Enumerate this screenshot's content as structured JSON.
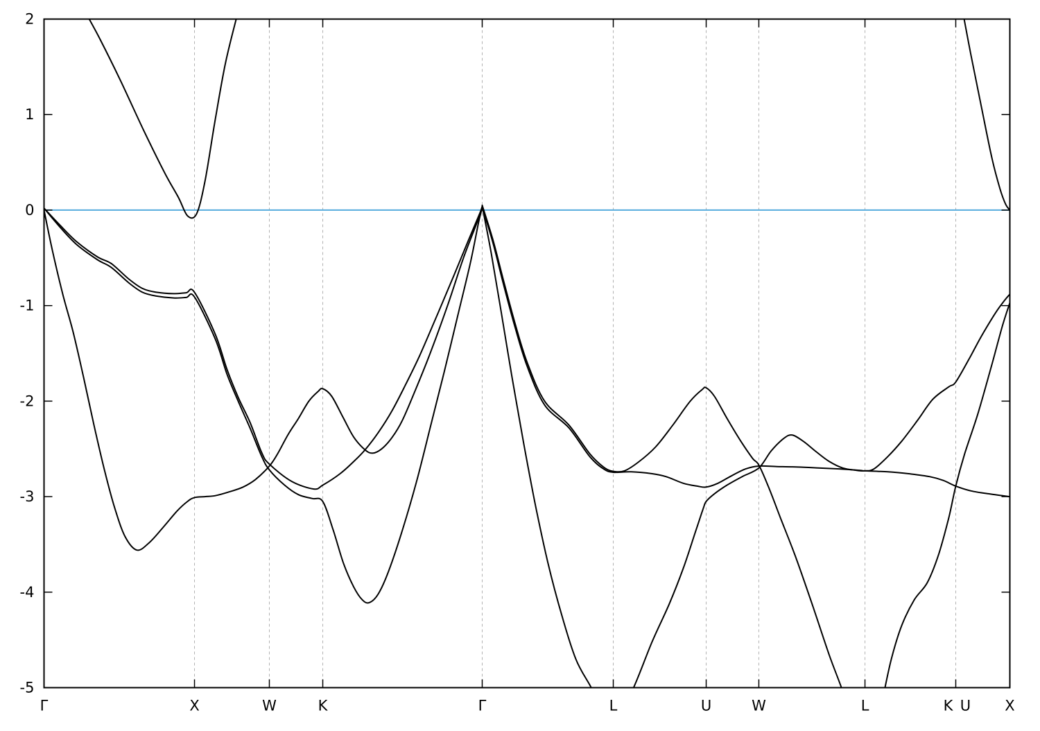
{
  "chart_data": {
    "type": "line",
    "title": "",
    "xlabel": "",
    "ylabel": "",
    "ylim": [
      -5,
      2
    ],
    "yticks": [
      -5,
      -4,
      -3,
      -2,
      -1,
      0,
      1,
      2
    ],
    "ytick_labels": [
      "-5",
      "-4",
      "-3",
      "-2",
      "-1",
      "0",
      "1",
      "2"
    ],
    "grid": {
      "vertical_only": true,
      "color": "#b0b0b0",
      "style": "dashed"
    },
    "border_color": "#000000",
    "background": "#ffffff",
    "zero_line": {
      "value": 0,
      "color": "#55acdd",
      "name": "fermi-level"
    },
    "band_color": "#000000",
    "xgridlines": [
      0.1558,
      0.2333,
      0.2886,
      0.4537,
      0.5894,
      0.6856,
      0.7401,
      0.85,
      0.944
    ],
    "xlabels": [
      {
        "text": "Γ",
        "pos": 0.0
      },
      {
        "text": "X",
        "pos": 0.1558
      },
      {
        "text": "W",
        "pos": 0.2333
      },
      {
        "text": "K",
        "pos": 0.2886
      },
      {
        "text": "Γ",
        "pos": 0.4537
      },
      {
        "text": "L",
        "pos": 0.5894
      },
      {
        "text": "U",
        "pos": 0.6856
      },
      {
        "text": "W",
        "pos": 0.7401
      },
      {
        "text": "L",
        "pos": 0.85
      },
      {
        "text": "K",
        "pos": 0.9361
      },
      {
        "text": "U",
        "pos": 0.954
      },
      {
        "text": "X",
        "pos": 1.0
      }
    ],
    "series": [
      {
        "name": "conduction-band-left",
        "points": [
          [
            0.0424,
            2.08
          ],
          [
            0.0574,
            1.8
          ],
          [
            0.079,
            1.36
          ],
          [
            0.1034,
            0.83
          ],
          [
            0.1249,
            0.39
          ],
          [
            0.1393,
            0.13
          ],
          [
            0.1486,
            -0.06
          ],
          [
            0.1579,
            -0.04
          ],
          [
            0.1666,
            0.3
          ],
          [
            0.1773,
            0.95
          ],
          [
            0.1881,
            1.55
          ],
          [
            0.201,
            2.08
          ]
        ]
      },
      {
        "name": "conduction-band-right",
        "points": [
          [
            0.9512,
            2.08
          ],
          [
            0.9598,
            1.62
          ],
          [
            0.9706,
            1.08
          ],
          [
            0.9813,
            0.55
          ],
          [
            0.9899,
            0.22
          ],
          [
            0.9957,
            0.06
          ],
          [
            1.0,
            0.0
          ]
        ]
      },
      {
        "name": "valence-band-1",
        "points": [
          [
            0,
            0.02
          ],
          [
            0.0158,
            -0.15
          ],
          [
            0.0337,
            -0.33
          ],
          [
            0.0553,
            -0.49
          ],
          [
            0.0696,
            -0.56
          ],
          [
            0.0876,
            -0.72
          ],
          [
            0.1019,
            -0.82
          ],
          [
            0.1163,
            -0.86
          ],
          [
            0.1342,
            -0.875
          ],
          [
            0.1472,
            -0.865
          ],
          [
            0.1558,
            -0.86
          ],
          [
            0.1773,
            -1.3
          ],
          [
            0.1895,
            -1.67
          ],
          [
            0.201,
            -1.96
          ],
          [
            0.2132,
            -2.22
          ],
          [
            0.2254,
            -2.54
          ],
          [
            0.2333,
            -2.66
          ],
          [
            0.2563,
            -2.84
          ],
          [
            0.2793,
            -2.92
          ],
          [
            0.2886,
            -2.88
          ],
          [
            0.3065,
            -2.76
          ],
          [
            0.3209,
            -2.63
          ],
          [
            0.3324,
            -2.51
          ],
          [
            0.346,
            -2.33
          ],
          [
            0.3604,
            -2.1
          ],
          [
            0.3747,
            -1.82
          ],
          [
            0.3891,
            -1.52
          ],
          [
            0.407,
            -1.1
          ],
          [
            0.425,
            -0.67
          ],
          [
            0.4393,
            -0.32
          ],
          [
            0.4501,
            -0.06
          ],
          [
            0.4537,
            0.03
          ]
        ]
      },
      {
        "name": "valence-band-2",
        "points": [
          [
            0,
            0.02
          ],
          [
            0.0158,
            -0.17
          ],
          [
            0.0337,
            -0.36
          ],
          [
            0.0553,
            -0.52
          ],
          [
            0.0696,
            -0.6
          ],
          [
            0.0876,
            -0.76
          ],
          [
            0.1019,
            -0.86
          ],
          [
            0.1163,
            -0.9
          ],
          [
            0.1342,
            -0.92
          ],
          [
            0.1472,
            -0.915
          ],
          [
            0.1558,
            -0.91
          ],
          [
            0.1773,
            -1.35
          ],
          [
            0.1895,
            -1.72
          ],
          [
            0.201,
            -2.0
          ],
          [
            0.2132,
            -2.28
          ],
          [
            0.2254,
            -2.58
          ],
          [
            0.2333,
            -2.72
          ],
          [
            0.2491,
            -2.88
          ],
          [
            0.2635,
            -2.98
          ],
          [
            0.2778,
            -3.02
          ],
          [
            0.2886,
            -3.05
          ],
          [
            0.2994,
            -3.35
          ],
          [
            0.3101,
            -3.7
          ],
          [
            0.3209,
            -3.95
          ],
          [
            0.3295,
            -4.08
          ],
          [
            0.3367,
            -4.11
          ],
          [
            0.346,
            -4.02
          ],
          [
            0.3568,
            -3.78
          ],
          [
            0.3711,
            -3.35
          ],
          [
            0.3855,
            -2.85
          ],
          [
            0.3998,
            -2.28
          ],
          [
            0.4142,
            -1.7
          ],
          [
            0.4285,
            -1.1
          ],
          [
            0.4415,
            -0.55
          ],
          [
            0.4501,
            -0.12
          ],
          [
            0.4537,
            0.02
          ]
        ]
      },
      {
        "name": "valence-band-3",
        "points": [
          [
            0,
            0.0
          ],
          [
            0.0086,
            -0.42
          ],
          [
            0.0194,
            -0.88
          ],
          [
            0.0302,
            -1.28
          ],
          [
            0.0409,
            -1.75
          ],
          [
            0.0517,
            -2.25
          ],
          [
            0.0625,
            -2.72
          ],
          [
            0.0732,
            -3.12
          ],
          [
            0.084,
            -3.42
          ],
          [
            0.0962,
            -3.56
          ],
          [
            0.1091,
            -3.48
          ],
          [
            0.1235,
            -3.32
          ],
          [
            0.1378,
            -3.15
          ],
          [
            0.1486,
            -3.05
          ],
          [
            0.1558,
            -3.01
          ],
          [
            0.1666,
            -3.0
          ],
          [
            0.1773,
            -2.99
          ],
          [
            0.1917,
            -2.95
          ],
          [
            0.206,
            -2.9
          ],
          [
            0.219,
            -2.82
          ],
          [
            0.2333,
            -2.68
          ],
          [
            0.2419,
            -2.55
          ],
          [
            0.2527,
            -2.35
          ],
          [
            0.2635,
            -2.18
          ],
          [
            0.2742,
            -2.0
          ],
          [
            0.2836,
            -1.9
          ],
          [
            0.2886,
            -1.87
          ],
          [
            0.2979,
            -1.95
          ],
          [
            0.3101,
            -2.18
          ],
          [
            0.3209,
            -2.38
          ],
          [
            0.3324,
            -2.51
          ],
          [
            0.3403,
            -2.545
          ],
          [
            0.3496,
            -2.5
          ],
          [
            0.3604,
            -2.38
          ],
          [
            0.3711,
            -2.2
          ],
          [
            0.3855,
            -1.86
          ],
          [
            0.3998,
            -1.5
          ],
          [
            0.4178,
            -1.0
          ],
          [
            0.4343,
            -0.5
          ],
          [
            0.4487,
            -0.12
          ],
          [
            0.4537,
            0.04
          ]
        ]
      },
      {
        "name": "valence-band-4",
        "points": [
          [
            0.4537,
            0.05
          ],
          [
            0.4645,
            -0.3
          ],
          [
            0.4753,
            -0.72
          ],
          [
            0.4875,
            -1.18
          ],
          [
            0.5004,
            -1.6
          ],
          [
            0.5183,
            -2.0
          ],
          [
            0.5434,
            -2.25
          ],
          [
            0.565,
            -2.55
          ],
          [
            0.5793,
            -2.69
          ],
          [
            0.5894,
            -2.735
          ],
          [
            0.6009,
            -2.73
          ],
          [
            0.6152,
            -2.64
          ],
          [
            0.6332,
            -2.48
          ],
          [
            0.6511,
            -2.25
          ],
          [
            0.6691,
            -2.0
          ],
          [
            0.6813,
            -1.88
          ],
          [
            0.6856,
            -1.86
          ],
          [
            0.6942,
            -1.95
          ],
          [
            0.7071,
            -2.18
          ],
          [
            0.7215,
            -2.42
          ],
          [
            0.7337,
            -2.6
          ],
          [
            0.7401,
            -2.67
          ],
          [
            0.7502,
            -2.9
          ],
          [
            0.7624,
            -3.22
          ],
          [
            0.7789,
            -3.65
          ],
          [
            0.7961,
            -4.15
          ],
          [
            0.8127,
            -4.65
          ],
          [
            0.8249,
            -4.98
          ],
          [
            0.836,
            -5.3
          ]
        ]
      },
      {
        "name": "valence-band-5",
        "points": [
          [
            0.4537,
            0.03
          ],
          [
            0.4645,
            -0.33
          ],
          [
            0.4753,
            -0.76
          ],
          [
            0.4875,
            -1.22
          ],
          [
            0.5004,
            -1.64
          ],
          [
            0.5183,
            -2.04
          ],
          [
            0.5434,
            -2.28
          ],
          [
            0.565,
            -2.58
          ],
          [
            0.5793,
            -2.71
          ],
          [
            0.5894,
            -2.745
          ],
          [
            0.608,
            -2.74
          ],
          [
            0.6296,
            -2.76
          ],
          [
            0.6439,
            -2.79
          ],
          [
            0.6619,
            -2.86
          ],
          [
            0.6763,
            -2.89
          ],
          [
            0.6856,
            -2.9
          ],
          [
            0.6978,
            -2.86
          ],
          [
            0.7122,
            -2.78
          ],
          [
            0.7265,
            -2.71
          ],
          [
            0.7401,
            -2.68
          ],
          [
            0.7588,
            -2.685
          ],
          [
            0.7804,
            -2.69
          ],
          [
            0.8019,
            -2.7
          ],
          [
            0.8234,
            -2.71
          ],
          [
            0.845,
            -2.725
          ],
          [
            0.85,
            -2.73
          ],
          [
            0.8737,
            -2.74
          ],
          [
            0.8952,
            -2.76
          ],
          [
            0.9168,
            -2.79
          ],
          [
            0.9311,
            -2.83
          ],
          [
            0.944,
            -2.89
          ],
          [
            0.9598,
            -2.94
          ],
          [
            0.9777,
            -2.97
          ],
          [
            1.0,
            -3.0
          ]
        ]
      },
      {
        "name": "valence-band-6",
        "points": [
          [
            0.4537,
            0.04
          ],
          [
            0.463,
            -0.45
          ],
          [
            0.4731,
            -1.05
          ],
          [
            0.4846,
            -1.75
          ],
          [
            0.4968,
            -2.45
          ],
          [
            0.509,
            -3.1
          ],
          [
            0.5219,
            -3.7
          ],
          [
            0.5363,
            -4.25
          ],
          [
            0.5506,
            -4.7
          ],
          [
            0.565,
            -4.97
          ],
          [
            0.5736,
            -5.12
          ],
          [
            0.5822,
            -5.22
          ],
          [
            0.5894,
            -5.25
          ],
          [
            0.5973,
            -5.18
          ],
          [
            0.6095,
            -5.02
          ],
          [
            0.6296,
            -4.52
          ],
          [
            0.6475,
            -4.12
          ],
          [
            0.6619,
            -3.75
          ],
          [
            0.6741,
            -3.38
          ],
          [
            0.6827,
            -3.12
          ],
          [
            0.6856,
            -3.05
          ],
          [
            0.6942,
            -2.97
          ],
          [
            0.7071,
            -2.88
          ],
          [
            0.7229,
            -2.79
          ],
          [
            0.7401,
            -2.7
          ],
          [
            0.753,
            -2.52
          ],
          [
            0.766,
            -2.39
          ],
          [
            0.7746,
            -2.355
          ],
          [
            0.7861,
            -2.42
          ],
          [
            0.7983,
            -2.52
          ],
          [
            0.8127,
            -2.63
          ],
          [
            0.827,
            -2.7
          ],
          [
            0.8414,
            -2.725
          ],
          [
            0.85,
            -2.73
          ],
          [
            0.8593,
            -2.71
          ],
          [
            0.8737,
            -2.58
          ],
          [
            0.888,
            -2.42
          ],
          [
            0.9045,
            -2.2
          ],
          [
            0.9203,
            -1.98
          ],
          [
            0.9368,
            -1.85
          ],
          [
            0.944,
            -1.8
          ],
          [
            0.9577,
            -1.56
          ],
          [
            0.9706,
            -1.32
          ],
          [
            0.9849,
            -1.08
          ],
          [
            0.9942,
            -0.95
          ],
          [
            1.0,
            -0.88
          ]
        ]
      },
      {
        "name": "valence-band-7",
        "points": [
          [
            0.865,
            -5.3
          ],
          [
            0.8687,
            -5.1
          ],
          [
            0.8773,
            -4.7
          ],
          [
            0.888,
            -4.35
          ],
          [
            0.9011,
            -4.08
          ],
          [
            0.9146,
            -3.9
          ],
          [
            0.9261,
            -3.61
          ],
          [
            0.9368,
            -3.22
          ],
          [
            0.944,
            -2.89
          ],
          [
            0.9533,
            -2.55
          ],
          [
            0.967,
            -2.13
          ],
          [
            0.9813,
            -1.62
          ],
          [
            0.9921,
            -1.22
          ],
          [
            1.0,
            -0.97
          ]
        ]
      }
    ]
  }
}
